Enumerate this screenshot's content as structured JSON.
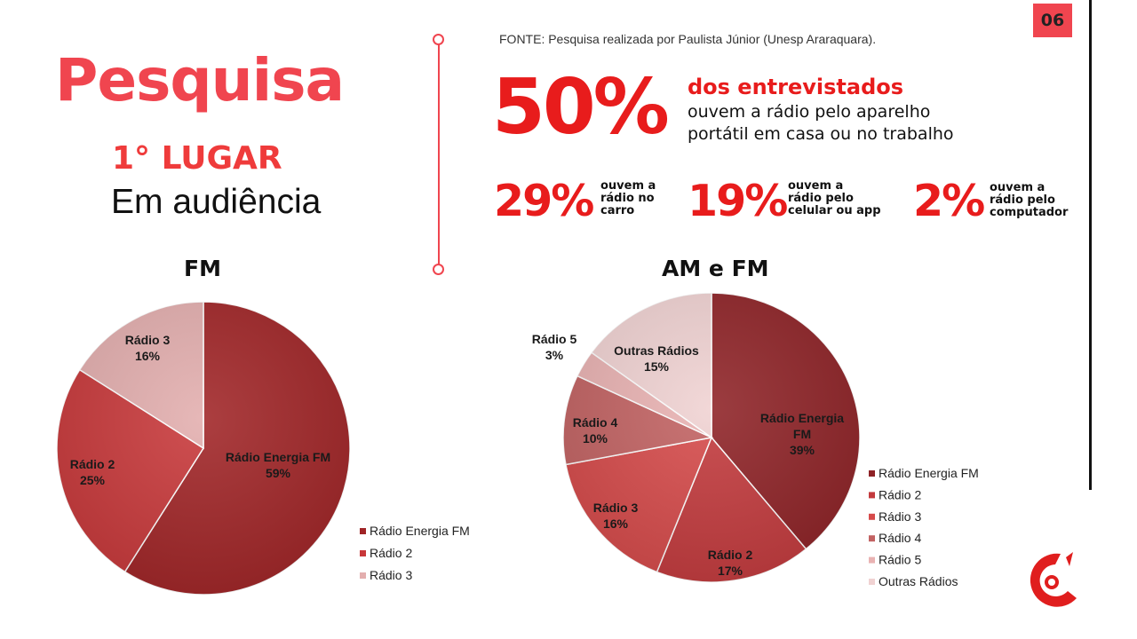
{
  "title": "Pesquisa",
  "subtitle_rank": "1° LUGAR",
  "subtitle_desc": "Em audiência",
  "page_number": "06",
  "source": "FONTE: Pesquisa realizada por Paulista Júnior (Unesp Araraquara).",
  "headline": {
    "percent": "50%",
    "line1": "dos entrevistados",
    "line2": "ouvem a rádio pelo aparelho portátil em casa ou no trabalho"
  },
  "stats": [
    {
      "percent": "29%",
      "lines": [
        "ouvem a",
        "rádio no",
        "carro"
      ]
    },
    {
      "percent": "19%",
      "lines": [
        "ouvem a",
        "rádio pelo",
        "celular ou app"
      ]
    },
    {
      "percent": "2%",
      "lines": [
        "ouvem a",
        "rádio pelo",
        "computador"
      ]
    }
  ],
  "colors": {
    "accent": "#f0454f",
    "strong_red": "#e81c1c",
    "slice_1": "#a02426",
    "slice_2": "#c8383a",
    "slice_3": "#e3aeae",
    "amfm_1": "#8e2226",
    "amfm_2": "#c33a3d",
    "amfm_3": "#d64a4a",
    "amfm_4": "#c26262",
    "amfm_5": "#e9b2b2",
    "amfm_6": "#f0d2d2"
  },
  "chart_data": [
    {
      "type": "pie",
      "title": "FM",
      "categories": [
        "Rádio Energia FM",
        "Rádio 2",
        "Rádio 3"
      ],
      "values": [
        59,
        25,
        16
      ],
      "labels": [
        "Rádio Energia FM\n59%",
        "Rádio 2\n25%",
        "Rádio 3\n16%"
      ],
      "legend": [
        "Rádio Energia FM",
        "Rádio 2",
        "Rádio 3"
      ],
      "legend_position": "bottom-right"
    },
    {
      "type": "pie",
      "title": "AM e FM",
      "categories": [
        "Rádio Energia FM",
        "Rádio 2",
        "Rádio 3",
        "Rádio 4",
        "Rádio 5",
        "Outras Rádios"
      ],
      "values": [
        39,
        17,
        16,
        10,
        3,
        15
      ],
      "labels": [
        "Rádio Energia\nFM\n39%",
        "Rádio 2\n17%",
        "Rádio 3\n16%",
        "Rádio 4\n10%",
        "Rádio 5\n3%",
        "Outras Rádios\n15%"
      ],
      "legend": [
        "Rádio Energia FM",
        "Rádio 2",
        "Rádio 3",
        "Rádio 4",
        "Rádio 5",
        "Outras Rádios"
      ],
      "legend_position": "right"
    }
  ]
}
